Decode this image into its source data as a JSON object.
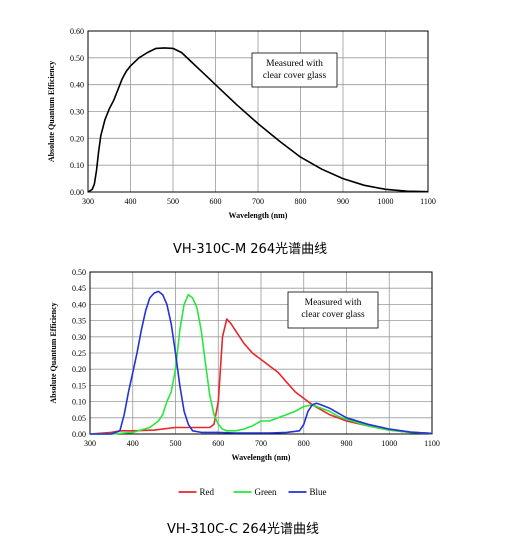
{
  "chart_data": [
    {
      "type": "line",
      "xlabel": "Wavelength (nm)",
      "ylabel": "Absolute Quantum Efficiency",
      "xlim": [
        300,
        1100
      ],
      "ylim": [
        0,
        0.6
      ],
      "xticks": [
        "300",
        "400",
        "500",
        "600",
        "700",
        "800",
        "900",
        "1000",
        "1100"
      ],
      "yticks": [
        "0.00",
        "0.10",
        "0.20",
        "0.30",
        "0.40",
        "0.50",
        "0.60"
      ],
      "grid": true,
      "annotation": [
        "Measured with",
        "clear cover glass"
      ],
      "caption": "VH-310C-M 264光谱曲线",
      "series": [
        {
          "color": "#000000",
          "x": [
            300,
            310,
            315,
            320,
            325,
            330,
            340,
            350,
            360,
            370,
            380,
            390,
            400,
            420,
            440,
            460,
            480,
            500,
            520,
            540,
            560,
            580,
            600,
            650,
            700,
            750,
            800,
            850,
            900,
            950,
            1000,
            1050,
            1100
          ],
          "y": [
            0.0,
            0.01,
            0.03,
            0.08,
            0.15,
            0.21,
            0.27,
            0.31,
            0.34,
            0.38,
            0.42,
            0.45,
            0.47,
            0.5,
            0.52,
            0.535,
            0.537,
            0.535,
            0.52,
            0.49,
            0.46,
            0.43,
            0.4,
            0.325,
            0.255,
            0.19,
            0.13,
            0.085,
            0.05,
            0.025,
            0.01,
            0.003,
            0.001
          ]
        }
      ]
    },
    {
      "type": "line",
      "xlabel": "Wavelength (nm)",
      "ylabel": "Absolute Quantum Efficiency",
      "xlim": [
        300,
        1100
      ],
      "ylim": [
        0,
        0.5
      ],
      "xticks": [
        "300",
        "400",
        "500",
        "600",
        "700",
        "800",
        "900",
        "1000",
        "1100"
      ],
      "yticks": [
        "0.00",
        "0.05",
        "0.10",
        "0.15",
        "0.20",
        "0.25",
        "0.30",
        "0.35",
        "0.40",
        "0.45",
        "0.50"
      ],
      "grid": true,
      "annotation": [
        "Measured with",
        "clear cover glass"
      ],
      "caption": "VH-310C-C 264光谱曲线",
      "legend_position": "bottom",
      "series": [
        {
          "name": "Red",
          "color": "#e8262b",
          "x": [
            300,
            350,
            370,
            400,
            450,
            500,
            550,
            580,
            590,
            600,
            605,
            610,
            620,
            630,
            640,
            650,
            660,
            680,
            700,
            720,
            740,
            760,
            780,
            800,
            820,
            840,
            860,
            880,
            900,
            950,
            1000,
            1050,
            1100
          ],
          "y": [
            0.0,
            0.005,
            0.01,
            0.01,
            0.012,
            0.02,
            0.02,
            0.02,
            0.03,
            0.1,
            0.2,
            0.3,
            0.355,
            0.34,
            0.32,
            0.3,
            0.28,
            0.25,
            0.23,
            0.21,
            0.19,
            0.16,
            0.13,
            0.11,
            0.09,
            0.075,
            0.06,
            0.05,
            0.04,
            0.025,
            0.012,
            0.005,
            0.002
          ]
        },
        {
          "name": "Green",
          "color": "#27e83a",
          "x": [
            300,
            350,
            400,
            440,
            460,
            470,
            480,
            490,
            500,
            510,
            520,
            530,
            540,
            550,
            560,
            570,
            580,
            590,
            600,
            610,
            620,
            640,
            660,
            680,
            700,
            720,
            740,
            760,
            780,
            800,
            820,
            840,
            860,
            880,
            900,
            950,
            1000,
            1050,
            1100
          ],
          "y": [
            0.0,
            0.0,
            0.005,
            0.02,
            0.04,
            0.06,
            0.1,
            0.13,
            0.2,
            0.32,
            0.4,
            0.43,
            0.42,
            0.39,
            0.32,
            0.22,
            0.12,
            0.06,
            0.03,
            0.015,
            0.01,
            0.01,
            0.015,
            0.025,
            0.04,
            0.04,
            0.05,
            0.06,
            0.07,
            0.085,
            0.09,
            0.08,
            0.07,
            0.055,
            0.045,
            0.025,
            0.012,
            0.005,
            0.002
          ]
        },
        {
          "name": "Blue",
          "color": "#2333d6",
          "x": [
            300,
            350,
            370,
            380,
            390,
            400,
            410,
            420,
            430,
            440,
            450,
            460,
            470,
            480,
            490,
            500,
            510,
            520,
            530,
            540,
            560,
            600,
            640,
            680,
            720,
            760,
            790,
            800,
            810,
            820,
            830,
            840,
            860,
            880,
            900,
            950,
            1000,
            1050,
            1100
          ],
          "y": [
            0.0,
            0.0,
            0.01,
            0.06,
            0.13,
            0.19,
            0.25,
            0.32,
            0.38,
            0.42,
            0.435,
            0.44,
            0.43,
            0.4,
            0.34,
            0.25,
            0.15,
            0.07,
            0.03,
            0.01,
            0.005,
            0.005,
            0.003,
            0.003,
            0.003,
            0.005,
            0.01,
            0.03,
            0.07,
            0.09,
            0.095,
            0.09,
            0.08,
            0.065,
            0.05,
            0.03,
            0.015,
            0.006,
            0.002
          ]
        }
      ]
    }
  ]
}
